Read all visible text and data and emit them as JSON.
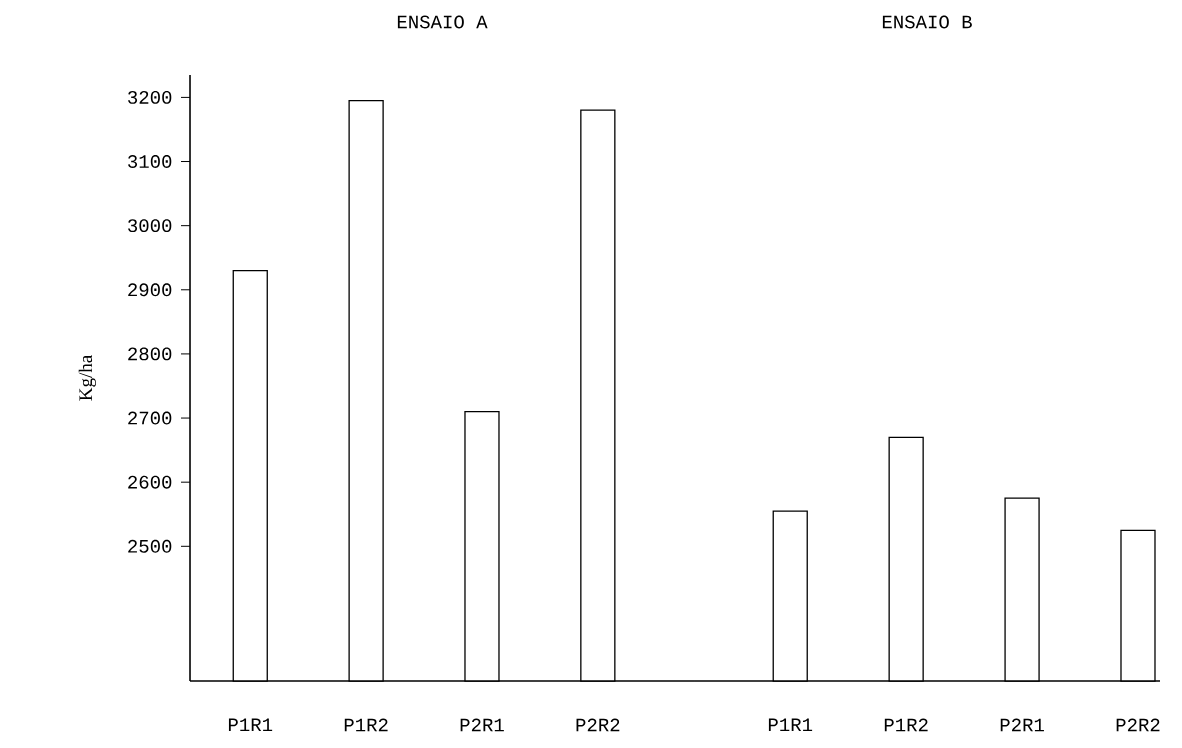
{
  "chart_data": [
    {
      "type": "bar",
      "title": "ENSAIO  A",
      "ylabel": "Kg/ha",
      "categories": [
        "P1R1",
        "P1R2",
        "P2R1",
        "P2R2"
      ],
      "color": "#000000",
      "values": [
        2930,
        3195,
        2710,
        3180
      ],
      "ylim": [
        2290,
        3235
      ],
      "yticks": [
        2500,
        2600,
        2700,
        2800,
        2900,
        3000,
        3100,
        3200
      ]
    },
    {
      "type": "bar",
      "title": "ENSAIO B",
      "categories": [
        "P1R1",
        "P1R2",
        "P2R1",
        "P2R2"
      ],
      "color": "#000000",
      "values": [
        2555,
        2670,
        2575,
        2525
      ],
      "ylim": [
        2290,
        3200
      ],
      "yticks": [
        2500,
        2600,
        2700,
        2800,
        2900,
        3000,
        3100,
        3200
      ],
      "tick_labels": "x"
    }
  ]
}
